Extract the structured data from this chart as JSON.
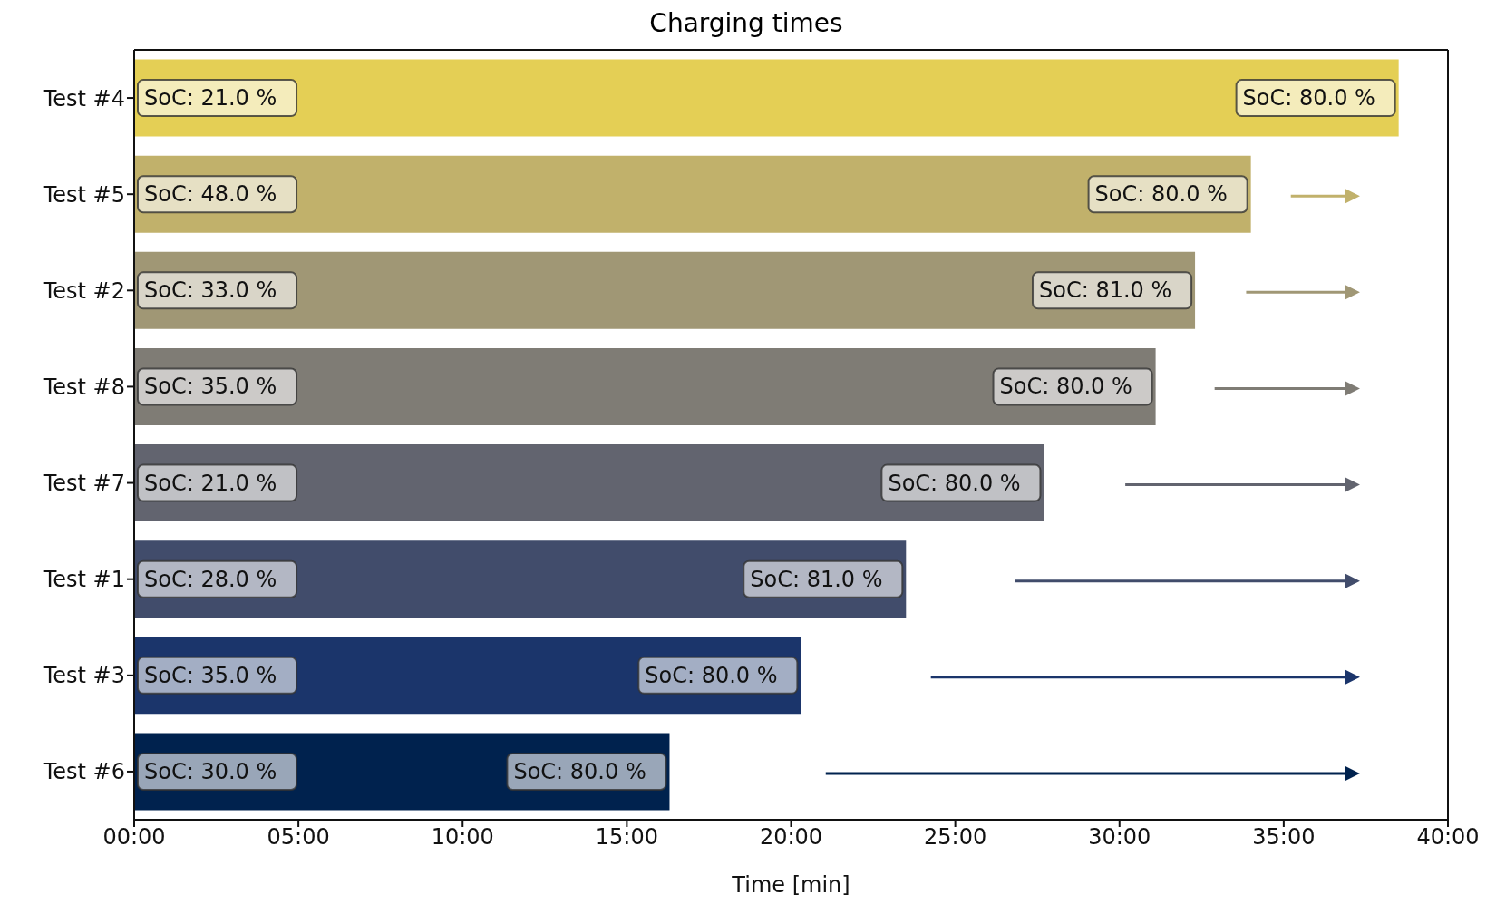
{
  "chart_data": {
    "type": "bar",
    "orientation": "horizontal",
    "title": "Charging times",
    "xlabel": "Time [min]",
    "categories": [
      "Test #4",
      "Test #5",
      "Test #2",
      "Test #8",
      "Test #7",
      "Test #1",
      "Test #3",
      "Test #6"
    ],
    "values": [
      38.5,
      34.0,
      32.3,
      31.1,
      27.7,
      23.5,
      20.3,
      16.3
    ],
    "colors": [
      "#e4cf55",
      "#c1b16b",
      "#a09775",
      "#7f7c75",
      "#62646f",
      "#414c6b",
      "#1b356b",
      "#00224e"
    ],
    "xlim": [
      0,
      40
    ],
    "xticks": [
      {
        "value": 0,
        "label": "00:00"
      },
      {
        "value": 5,
        "label": "05:00"
      },
      {
        "value": 10,
        "label": "10:00"
      },
      {
        "value": 15,
        "label": "15:00"
      },
      {
        "value": 20,
        "label": "20:00"
      },
      {
        "value": 25,
        "label": "25:00"
      },
      {
        "value": 30,
        "label": "30:00"
      },
      {
        "value": 35,
        "label": "35:00"
      },
      {
        "value": 40,
        "label": "40:00"
      }
    ],
    "annotations": [
      {
        "text": "SoC: 21.0 %",
        "x": 0,
        "y": "Test #4"
      },
      {
        "text": "SoC: 80.0 %",
        "x": 38.5,
        "y": "Test #4"
      },
      {
        "text": "SoC: 48.0 %",
        "x": 0,
        "y": "Test #5"
      },
      {
        "text": "SoC: 80.0 %",
        "x": 34.0,
        "y": "Test #5"
      },
      {
        "text": "SoC: 33.0 %",
        "x": 0,
        "y": "Test #2"
      },
      {
        "text": "SoC: 81.0 %",
        "x": 32.3,
        "y": "Test #2"
      },
      {
        "text": "SoC: 35.0 %",
        "x": 0,
        "y": "Test #8"
      },
      {
        "text": "SoC: 80.0 %",
        "x": 31.1,
        "y": "Test #8"
      },
      {
        "text": "SoC: 21.0 %",
        "x": 0,
        "y": "Test #7"
      },
      {
        "text": "SoC: 80.0 %",
        "x": 27.7,
        "y": "Test #7"
      },
      {
        "text": "SoC: 28.0 %",
        "x": 0,
        "y": "Test #1"
      },
      {
        "text": "SoC: 81.0 %",
        "x": 23.5,
        "y": "Test #1"
      },
      {
        "text": "SoC: 35.0 %",
        "x": 0,
        "y": "Test #3"
      },
      {
        "text": "SoC: 80.0 %",
        "x": 20.3,
        "y": "Test #3"
      },
      {
        "text": "SoC: 30.0 %",
        "x": 0,
        "y": "Test #6"
      },
      {
        "text": "SoC: 80.0 %",
        "x": 16.3,
        "y": "Test #6"
      }
    ],
    "grid": false,
    "legend": false
  }
}
